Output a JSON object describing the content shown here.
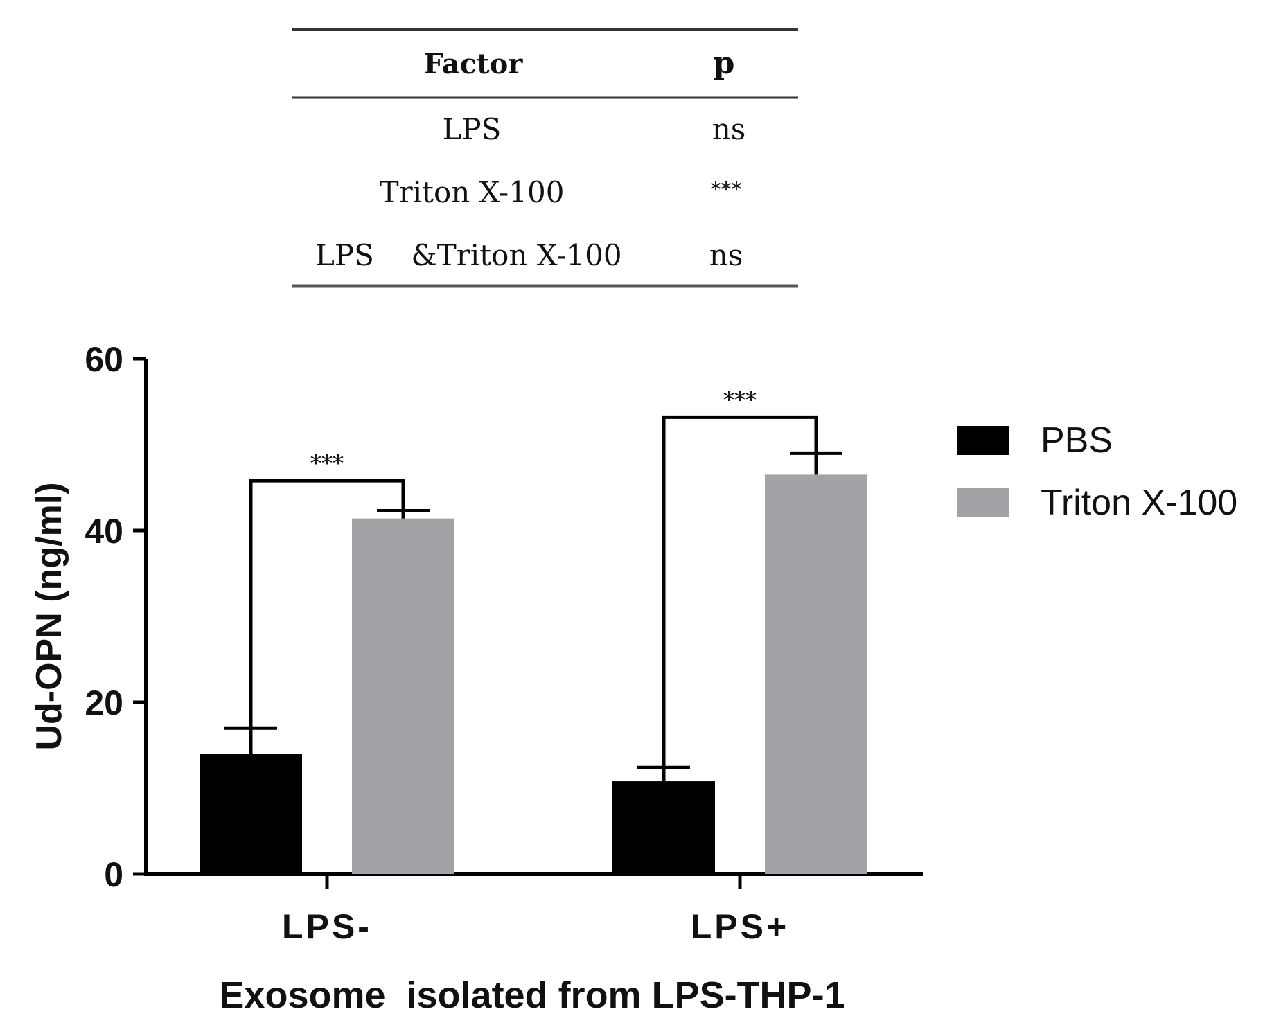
{
  "factor_table": {
    "headers": {
      "factor": "Factor",
      "p": "p"
    },
    "rows": [
      {
        "factor": "LPS",
        "p": "ns"
      },
      {
        "factor": "Triton X-100",
        "p": "***"
      },
      {
        "factor": "LPS    &Triton X-100",
        "p": "ns"
      }
    ]
  },
  "chart_data": {
    "type": "bar",
    "title": "",
    "xlabel": "Exosome  isolated from LPS-THP-1",
    "ylabel": "Ud-OPN (ng/ml)",
    "ylim": [
      0,
      60
    ],
    "yticks": [
      0,
      20,
      40,
      60
    ],
    "categories": [
      "LPS-",
      "LPS+"
    ],
    "series": [
      {
        "name": "PBS",
        "color": "#000000",
        "values": [
          14,
          10.8
        ],
        "errors": [
          3,
          1.6
        ]
      },
      {
        "name": "Triton X-100",
        "color": "#a2a3a7",
        "values": [
          41.4,
          46.5
        ],
        "errors": [
          0.9,
          2.5
        ]
      }
    ],
    "significance": [
      {
        "category": "LPS-",
        "label": "***",
        "bracket_y": 45.8
      },
      {
        "category": "LPS+",
        "label": "***",
        "bracket_y": 53.2
      }
    ],
    "legend": {
      "position": "right"
    }
  }
}
